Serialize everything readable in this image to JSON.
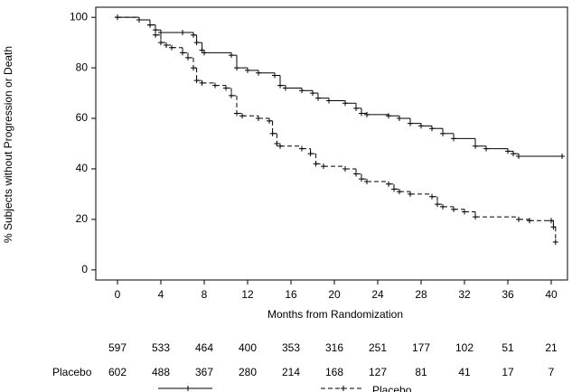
{
  "chart_data": {
    "type": "step",
    "ylabel": "% Subjects without Progression or Death",
    "xlabel": "Months from Randomization",
    "xlim": [
      -2,
      41.5
    ],
    "ylim": [
      -4,
      104
    ],
    "xticks": [
      0,
      4,
      8,
      12,
      16,
      20,
      24,
      28,
      32,
      36,
      40
    ],
    "yticks": [
      0,
      20,
      40,
      60,
      80,
      100
    ],
    "series": [
      {
        "color": "#000000",
        "dash": "solid",
        "x": [
          0,
          2,
          3,
          3.5,
          4,
          6,
          7,
          7.3,
          7.8,
          8,
          10.5,
          11,
          12,
          13,
          14.5,
          15,
          15.5,
          17,
          18,
          18.5,
          19.5,
          21,
          22,
          22.5,
          23,
          25,
          26,
          27,
          28,
          29,
          30,
          31,
          33,
          34,
          36,
          36.5,
          37,
          41
        ],
        "values": [
          100,
          99,
          97,
          95,
          94,
          94,
          93,
          90,
          87,
          86,
          85,
          80,
          79,
          78,
          77,
          73,
          72,
          71,
          70,
          68,
          67,
          66,
          64,
          62,
          61.5,
          61,
          60,
          58,
          57,
          56,
          54,
          52,
          49,
          48,
          47,
          46,
          45,
          45
        ]
      },
      {
        "name": "Placebo",
        "color": "#000000",
        "dash": "dashed",
        "x": [
          0,
          2,
          3,
          3.5,
          4,
          4.5,
          5,
          6,
          6.5,
          7,
          7.3,
          7.8,
          9,
          10,
          10.5,
          11,
          11.5,
          13,
          14,
          14.3,
          14.7,
          15,
          17,
          17.8,
          18.3,
          19,
          21,
          22,
          22.5,
          23,
          25,
          25.5,
          26,
          27,
          29,
          29.5,
          30,
          31,
          32,
          33,
          37,
          38,
          40,
          40.2,
          40.4
        ],
        "values": [
          100,
          99,
          97,
          93,
          90,
          89,
          88,
          86,
          84,
          80,
          75,
          74,
          73,
          72,
          69,
          62,
          61,
          60,
          59,
          54,
          50,
          49,
          48,
          46,
          42,
          41,
          40,
          38,
          36,
          35,
          34,
          32,
          31,
          30,
          29,
          26,
          25,
          24,
          23,
          21,
          20,
          19.5,
          19.5,
          17,
          11
        ]
      }
    ],
    "risk_table": [
      {
        "values": [
          597,
          533,
          464,
          400,
          353,
          316,
          251,
          177,
          102,
          51,
          21
        ]
      },
      {
        "label": "Placebo",
        "values": [
          602,
          488,
          367,
          280,
          214,
          168,
          127,
          81,
          41,
          17,
          7
        ]
      }
    ]
  }
}
